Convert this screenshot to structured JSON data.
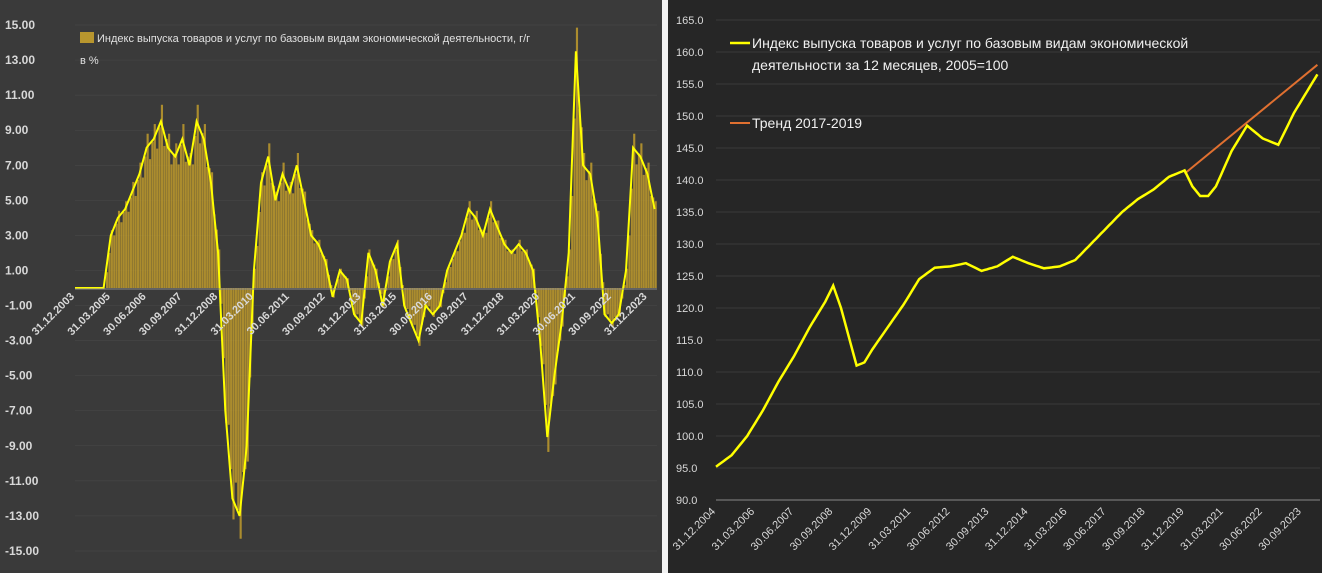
{
  "chart_data": [
    {
      "type": "bar+line",
      "series": [
        {
          "name": "Индекс выпуска товаров и услуг по базовым видам экономической деятельности, г/г в %",
          "type": "bar"
        }
      ],
      "legend_line1": "Индекс выпуска товаров и услуг по базовым видам экономической деятельности, г/г",
      "legend_line2": "в %",
      "ylim": [
        -15,
        15
      ],
      "y_ticks": [
        "15.00",
        "13.00",
        "11.00",
        "9.00",
        "7.00",
        "5.00",
        "3.00",
        "1.00",
        "-1.00",
        "-3.00",
        "-5.00",
        "-7.00",
        "-9.00",
        "-11.00",
        "-13.00",
        "-15.00"
      ],
      "x_ticks": [
        "31.12.2003",
        "31.03.2005",
        "30.06.2006",
        "30.09.2007",
        "31.12.2008",
        "31.03.2010",
        "30.06.2011",
        "30.09.2012",
        "31.12.2013",
        "31.03.2015",
        "30.06.2016",
        "30.09.2017",
        "31.12.2018",
        "31.03.2020",
        "30.06.2021",
        "30.09.2022",
        "31.12.2023"
      ],
      "x_start": "2003-12",
      "approx_points": [
        [
          "2003-12",
          0
        ],
        [
          "2004-12",
          0
        ],
        [
          "2005-03",
          3.0
        ],
        [
          "2005-06",
          4.0
        ],
        [
          "2005-09",
          4.5
        ],
        [
          "2005-12",
          5.5
        ],
        [
          "2006-03",
          6.5
        ],
        [
          "2006-06",
          8.0
        ],
        [
          "2006-09",
          8.5
        ],
        [
          "2006-12",
          9.5
        ],
        [
          "2007-03",
          8.0
        ],
        [
          "2007-06",
          7.5
        ],
        [
          "2007-09",
          8.5
        ],
        [
          "2007-12",
          7.0
        ],
        [
          "2008-03",
          9.5
        ],
        [
          "2008-06",
          8.5
        ],
        [
          "2008-09",
          6.0
        ],
        [
          "2008-12",
          2.0
        ],
        [
          "2009-03",
          -7.0
        ],
        [
          "2009-06",
          -12.0
        ],
        [
          "2009-09",
          -13.0
        ],
        [
          "2009-12",
          -9.0
        ],
        [
          "2010-03",
          1.0
        ],
        [
          "2010-06",
          6.0
        ],
        [
          "2010-09",
          7.5
        ],
        [
          "2010-12",
          5.0
        ],
        [
          "2011-03",
          6.5
        ],
        [
          "2011-06",
          5.5
        ],
        [
          "2011-09",
          7.0
        ],
        [
          "2011-12",
          5.0
        ],
        [
          "2012-03",
          3.0
        ],
        [
          "2012-06",
          2.5
        ],
        [
          "2012-09",
          1.5
        ],
        [
          "2012-12",
          -0.5
        ],
        [
          "2013-03",
          1.0
        ],
        [
          "2013-06",
          0.5
        ],
        [
          "2013-09",
          -1.5
        ],
        [
          "2013-12",
          -2.0
        ],
        [
          "2014-03",
          2.0
        ],
        [
          "2014-06",
          1.0
        ],
        [
          "2014-09",
          -1.0
        ],
        [
          "2014-12",
          1.5
        ],
        [
          "2015-03",
          2.5
        ],
        [
          "2015-06",
          -1.0
        ],
        [
          "2015-09",
          -2.0
        ],
        [
          "2015-12",
          -3.0
        ],
        [
          "2016-03",
          -1.0
        ],
        [
          "2016-06",
          -1.5
        ],
        [
          "2016-09",
          -1.0
        ],
        [
          "2016-12",
          1.0
        ],
        [
          "2017-03",
          2.0
        ],
        [
          "2017-06",
          3.0
        ],
        [
          "2017-09",
          4.5
        ],
        [
          "2017-12",
          4.0
        ],
        [
          "2018-03",
          3.0
        ],
        [
          "2018-06",
          4.5
        ],
        [
          "2018-09",
          3.5
        ],
        [
          "2018-12",
          2.5
        ],
        [
          "2019-03",
          2.0
        ],
        [
          "2019-06",
          2.5
        ],
        [
          "2019-09",
          2.0
        ],
        [
          "2019-12",
          1.0
        ],
        [
          "2020-03",
          -3.0
        ],
        [
          "2020-06",
          -8.5
        ],
        [
          "2020-09",
          -5.0
        ],
        [
          "2020-12",
          -2.0
        ],
        [
          "2021-03",
          2.0
        ],
        [
          "2021-06",
          13.5
        ],
        [
          "2021-09",
          7.0
        ],
        [
          "2021-12",
          6.5
        ],
        [
          "2022-03",
          4.0
        ],
        [
          "2022-06",
          -1.5
        ],
        [
          "2022-09",
          -2.0
        ],
        [
          "2022-12",
          -1.5
        ],
        [
          "2023-03",
          1.0
        ],
        [
          "2023-06",
          8.0
        ],
        [
          "2023-09",
          7.5
        ],
        [
          "2023-12",
          6.5
        ],
        [
          "2024-03",
          4.5
        ]
      ]
    },
    {
      "type": "line",
      "series": [
        {
          "name": "Индекс выпуска товаров и услуг по базовым видам экономической деятельности за 12 месяцев, 2005=100",
          "color": "#ffff00"
        },
        {
          "name": "Тренд 2017-2019",
          "color": "#e07030"
        }
      ],
      "legend_line1": "Индекс выпуска товаров и услуг по базовым видам экономической",
      "legend_line2": "деятельности за 12 месяцев, 2005=100",
      "trend_label": "Тренд 2017-2019",
      "ylim": [
        90,
        165
      ],
      "y_ticks": [
        "165.0",
        "160.0",
        "155.0",
        "150.0",
        "145.0",
        "140.0",
        "135.0",
        "130.0",
        "125.0",
        "120.0",
        "115.0",
        "110.0",
        "105.0",
        "100.0",
        "95.0",
        "90.0"
      ],
      "x_ticks": [
        "31.12.2004",
        "31.03.2006",
        "30.06.2007",
        "30.09.2008",
        "31.12.2009",
        "31.03.2011",
        "30.06.2012",
        "30.09.2013",
        "31.12.2014",
        "31.03.2016",
        "30.06.2017",
        "30.09.2018",
        "31.12.2019",
        "31.03.2021",
        "30.06.2022",
        "30.09.2023"
      ],
      "x_start": "2004-12",
      "index_points": [
        [
          "2004-12",
          95.2
        ],
        [
          "2005-06",
          97.0
        ],
        [
          "2005-12",
          100.0
        ],
        [
          "2006-06",
          104.0
        ],
        [
          "2006-12",
          108.5
        ],
        [
          "2007-06",
          112.5
        ],
        [
          "2007-12",
          117.0
        ],
        [
          "2008-06",
          121.0
        ],
        [
          "2008-09",
          123.5
        ],
        [
          "2008-12",
          120.0
        ],
        [
          "2009-06",
          111.0
        ],
        [
          "2009-09",
          111.5
        ],
        [
          "2009-12",
          113.5
        ],
        [
          "2010-06",
          117.0
        ],
        [
          "2010-12",
          120.5
        ],
        [
          "2011-06",
          124.5
        ],
        [
          "2011-12",
          126.3
        ],
        [
          "2012-06",
          126.5
        ],
        [
          "2012-12",
          127.0
        ],
        [
          "2013-06",
          125.8
        ],
        [
          "2013-12",
          126.5
        ],
        [
          "2014-06",
          128.0
        ],
        [
          "2014-12",
          127.0
        ],
        [
          "2015-06",
          126.2
        ],
        [
          "2015-12",
          126.5
        ],
        [
          "2016-06",
          127.5
        ],
        [
          "2016-12",
          130.0
        ],
        [
          "2017-06",
          132.5
        ],
        [
          "2017-12",
          135.0
        ],
        [
          "2018-06",
          137.0
        ],
        [
          "2018-12",
          138.5
        ],
        [
          "2019-06",
          140.5
        ],
        [
          "2019-12",
          141.5
        ],
        [
          "2020-03",
          139.0
        ],
        [
          "2020-06",
          137.5
        ],
        [
          "2020-09",
          137.5
        ],
        [
          "2020-12",
          139.0
        ],
        [
          "2021-06",
          144.5
        ],
        [
          "2021-12",
          148.5
        ],
        [
          "2022-06",
          146.5
        ],
        [
          "2022-12",
          145.5
        ],
        [
          "2023-06",
          150.5
        ],
        [
          "2023-12",
          154.5
        ],
        [
          "2024-03",
          156.5
        ]
      ],
      "trend_points": [
        [
          "2019-12",
          141.0
        ],
        [
          "2024-03",
          158.0
        ]
      ]
    }
  ],
  "colors": {
    "left_bg": "#3a3a3a",
    "right_bg": "#262626",
    "bar": "#b8962e",
    "line": "#ffff00",
    "trend": "#e07030",
    "axis_text": "#d8d8d8",
    "grid": "#4a4a4a"
  }
}
